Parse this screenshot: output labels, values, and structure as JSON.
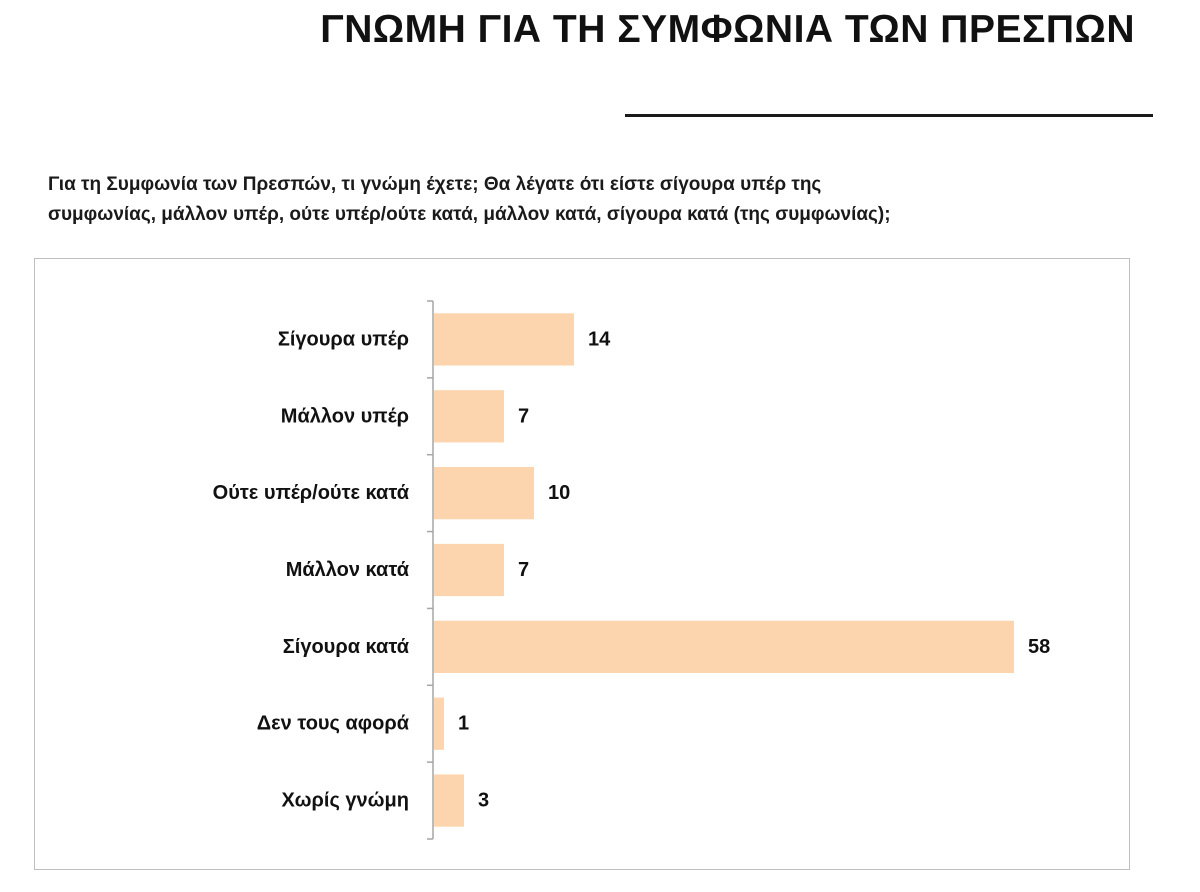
{
  "header": {
    "title": "ΓΝΩΜΗ ΓΙΑ ΤΗ ΣΥΜΦΩΝΙΑ ΤΩΝ ΠΡΕΣΠΩΝ",
    "question_line1": "Για τη Συμφωνία των Πρεσπών, τι γνώμη έχετε; Θα λέγατε ότι είστε σίγουρα υπέρ της",
    "question_line2": "συμφωνίας, μάλλον υπέρ, ούτε υπέρ/ούτε κατά, μάλλον κατά, σίγουρα κατά (της συμφωνίας);"
  },
  "chart_data": {
    "type": "bar",
    "orientation": "horizontal",
    "categories": [
      "Σίγουρα υπέρ",
      "Μάλλον υπέρ",
      "Ούτε υπέρ/ούτε κατά",
      "Μάλλον κατά",
      "Σίγουρα κατά",
      "Δεν τους αφορά",
      "Χωρίς γνώμη"
    ],
    "values": [
      14,
      7,
      10,
      7,
      58,
      1,
      3
    ],
    "xlim": [
      0,
      60
    ],
    "grid": false,
    "legend": "none",
    "data_labels": true,
    "bar_color": "#FCD5AE",
    "axis_color": "#a6a6a6"
  }
}
